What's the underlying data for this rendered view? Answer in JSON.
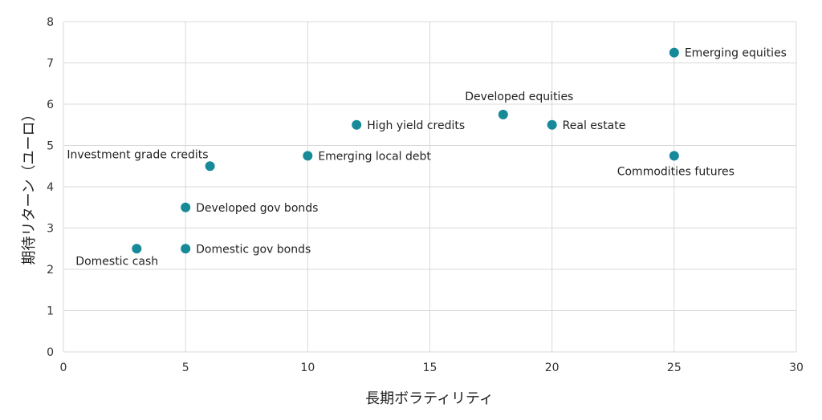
{
  "chart_data": {
    "type": "scatter",
    "title": "",
    "xlabel": "長期ボラティリティ",
    "ylabel": "期待リターン（ユーロ）",
    "xlim": [
      0,
      30
    ],
    "ylim": [
      0,
      8
    ],
    "x_ticks": [
      0,
      5,
      10,
      15,
      20,
      25,
      30
    ],
    "y_ticks": [
      0,
      1,
      2,
      3,
      4,
      5,
      6,
      7,
      8
    ],
    "grid": true,
    "point_color": "#168a99",
    "points": [
      {
        "label": "Domestic cash",
        "x": 3,
        "y": 2.5,
        "label_pos": "below-left"
      },
      {
        "label": "Domestic gov bonds",
        "x": 5,
        "y": 2.5,
        "label_pos": "right"
      },
      {
        "label": "Developed gov bonds",
        "x": 5,
        "y": 3.5,
        "label_pos": "right"
      },
      {
        "label": "Investment grade credits",
        "x": 6,
        "y": 4.5,
        "label_pos": "above-left"
      },
      {
        "label": "Emerging local debt",
        "x": 10,
        "y": 4.75,
        "label_pos": "right"
      },
      {
        "label": "High yield credits",
        "x": 12,
        "y": 5.5,
        "label_pos": "right"
      },
      {
        "label": "Developed equities",
        "x": 18,
        "y": 5.75,
        "label_pos": "above"
      },
      {
        "label": "Real estate",
        "x": 20,
        "y": 5.5,
        "label_pos": "right"
      },
      {
        "label": "Commodities futures",
        "x": 25,
        "y": 4.75,
        "label_pos": "below"
      },
      {
        "label": "Emerging equities",
        "x": 25,
        "y": 7.25,
        "label_pos": "right"
      }
    ]
  }
}
